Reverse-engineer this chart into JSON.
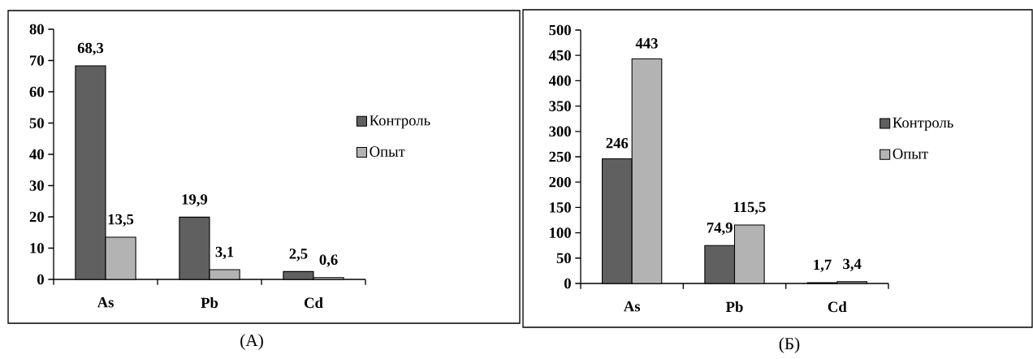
{
  "chart_data": [
    {
      "type": "bar",
      "title": "(А)",
      "categories": [
        "As",
        "Pb",
        "Cd"
      ],
      "ylim": [
        0,
        80
      ],
      "yticks": [
        0,
        10,
        20,
        30,
        40,
        50,
        60,
        70,
        80
      ],
      "legend": "right",
      "series": [
        {
          "name": "Контроль",
          "color": "#606060",
          "values": [
            68.3,
            19.9,
            2.5
          ],
          "value_labels": [
            "68,3",
            "19,9",
            "2,5"
          ]
        },
        {
          "name": "Опыт",
          "color": "#b3b3b3",
          "values": [
            13.5,
            3.1,
            0.6
          ],
          "value_labels": [
            "13,5",
            "3,1",
            "0,6"
          ]
        }
      ]
    },
    {
      "type": "bar",
      "title": "(Б)",
      "categories": [
        "As",
        "Pb",
        "Cd"
      ],
      "ylim": [
        0,
        500
      ],
      "yticks": [
        0,
        50,
        100,
        150,
        200,
        250,
        300,
        350,
        400,
        450,
        500
      ],
      "legend": "right",
      "series": [
        {
          "name": "Контроль",
          "color": "#606060",
          "values": [
            246,
            74.9,
            1.7
          ],
          "value_labels": [
            "246",
            "74,9",
            "1,7"
          ]
        },
        {
          "name": "Опыт",
          "color": "#b3b3b3",
          "values": [
            443,
            115.5,
            3.4
          ],
          "value_labels": [
            "443",
            "115,5",
            "3,4"
          ]
        }
      ]
    }
  ]
}
